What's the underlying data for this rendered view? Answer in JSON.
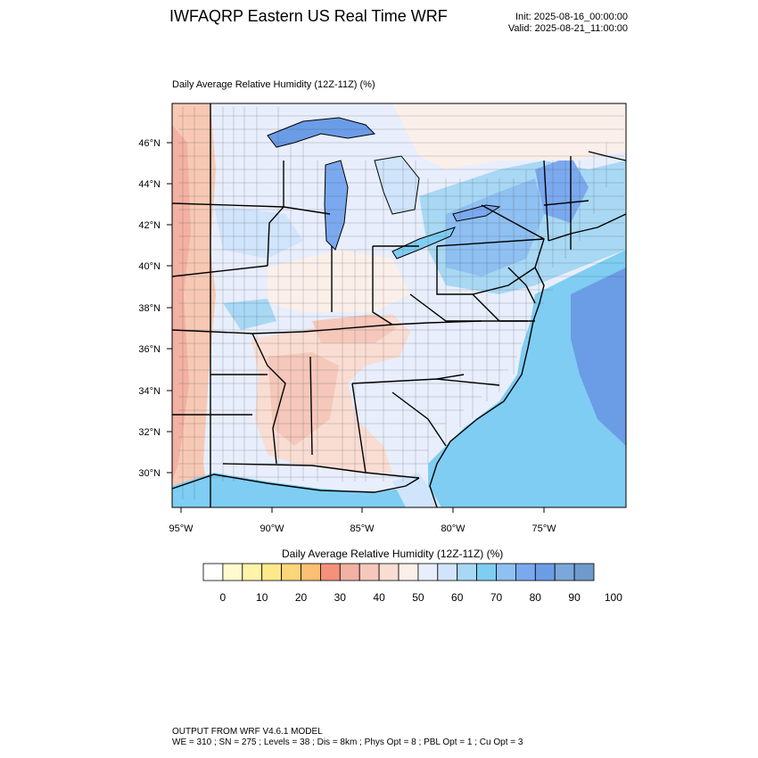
{
  "header": {
    "title": "IWFAQRP Eastern US Real Time WRF",
    "init": "Init: 2025-08-16_00:00:00",
    "valid": "Valid: 2025-08-21_11:00:00"
  },
  "plot": {
    "title": "Daily Average Relative Humidity (12Z-11Z)   (%)",
    "lat_labels": [
      "46°N",
      "44°N",
      "42°N",
      "40°N",
      "38°N",
      "36°N",
      "34°N",
      "32°N",
      "30°N"
    ],
    "lon_labels": [
      "95°W",
      "90°W",
      "85°W",
      "80°W",
      "75°W"
    ]
  },
  "colorbar": {
    "title": "Daily Average Relative Humidity (12Z-11Z)  (%)",
    "tick_labels": [
      "0",
      "10",
      "20",
      "30",
      "40",
      "50",
      "60",
      "70",
      "80",
      "90",
      "100"
    ],
    "colors": [
      "#ffffff",
      "#fffbcf",
      "#fff3a8",
      "#fde98a",
      "#fdd57a",
      "#fcbf74",
      "#f5907a",
      "#f2b1a3",
      "#f5c8bb",
      "#f9ddd3",
      "#fbefea",
      "#e8eefc",
      "#d0e4fb",
      "#a8d8f4",
      "#7fcdf2",
      "#8fc0f2",
      "#7ba9ef",
      "#6b9ce6",
      "#7aa8d9",
      "#6f9acb"
    ]
  },
  "footer": {
    "line1": "OUTPUT FROM WRF V4.6.1 MODEL",
    "line2": "WE = 310 ; SN = 275 ; Levels = 38 ; Dis = 8km ; Phys Opt = 8 ; PBL Opt = 1 ; Cu Opt = 3"
  }
}
